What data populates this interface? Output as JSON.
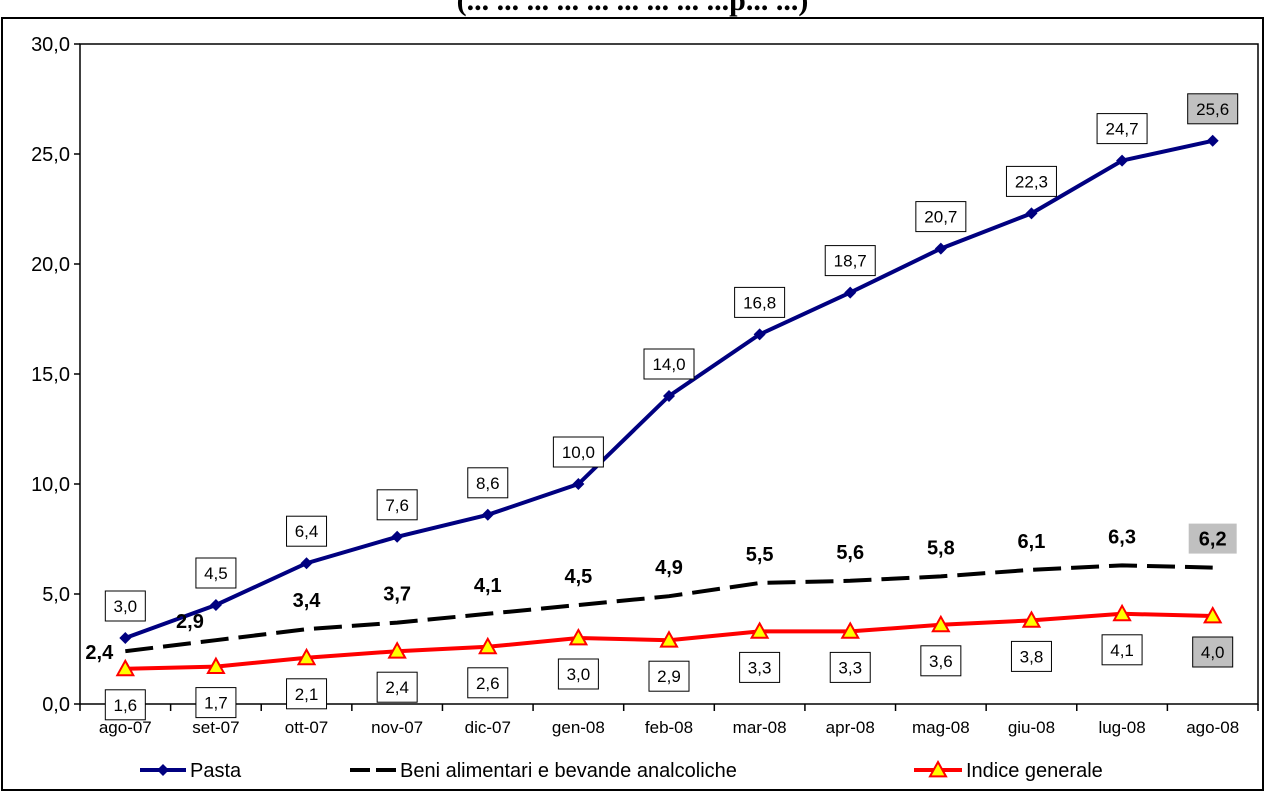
{
  "chart_data": {
    "type": "line",
    "title": "(... ... ... ... ... ... ... ... ...p... ...)",
    "categories": [
      "ago-07",
      "set-07",
      "ott-07",
      "nov-07",
      "dic-07",
      "gen-08",
      "feb-08",
      "mar-08",
      "apr-08",
      "mag-08",
      "giu-08",
      "lug-08",
      "ago-08"
    ],
    "ylim": [
      0,
      30
    ],
    "yticks": [
      "0,0",
      "5,0",
      "10,0",
      "15,0",
      "20,0",
      "25,0",
      "30,0"
    ],
    "ytick_values": [
      0,
      5,
      10,
      15,
      20,
      25,
      30
    ],
    "grid": false,
    "legend_position": "bottom",
    "series": [
      {
        "name": "Pasta",
        "color": "#000080",
        "marker": "diamond",
        "line_style": "solid",
        "values": [
          3.0,
          4.5,
          6.4,
          7.6,
          8.6,
          10.0,
          14.0,
          16.8,
          18.7,
          20.7,
          22.3,
          24.7,
          25.6
        ],
        "labels": [
          "3,0",
          "4,5",
          "6,4",
          "7,6",
          "8,6",
          "10,0",
          "14,0",
          "16,8",
          "18,7",
          "20,7",
          "22,3",
          "24,7",
          "25,6"
        ]
      },
      {
        "name": "Beni alimentari e bevande analcoliche",
        "color": "#000000",
        "marker": "none",
        "line_style": "dashed",
        "values": [
          2.4,
          2.9,
          3.4,
          3.7,
          4.1,
          4.5,
          4.9,
          5.5,
          5.6,
          5.8,
          6.1,
          6.3,
          6.2
        ],
        "labels": [
          "2,4",
          "2,9",
          "3,4",
          "3,7",
          "4,1",
          "4,5",
          "4,9",
          "5,5",
          "5,6",
          "5,8",
          "6,1",
          "6,3",
          "6,2"
        ]
      },
      {
        "name": "Indice generale",
        "color": "#ff0000",
        "marker": "triangle",
        "marker_fill": "#ffff00",
        "line_style": "solid",
        "values": [
          1.6,
          1.7,
          2.1,
          2.4,
          2.6,
          3.0,
          2.9,
          3.3,
          3.3,
          3.6,
          3.8,
          4.1,
          4.0
        ],
        "labels": [
          "1,6",
          "1,7",
          "2,1",
          "2,4",
          "2,6",
          "3,0",
          "2,9",
          "3,3",
          "3,3",
          "3,6",
          "3,8",
          "4,1",
          "4,0"
        ]
      }
    ],
    "highlight_color": "#c0c0c0"
  }
}
